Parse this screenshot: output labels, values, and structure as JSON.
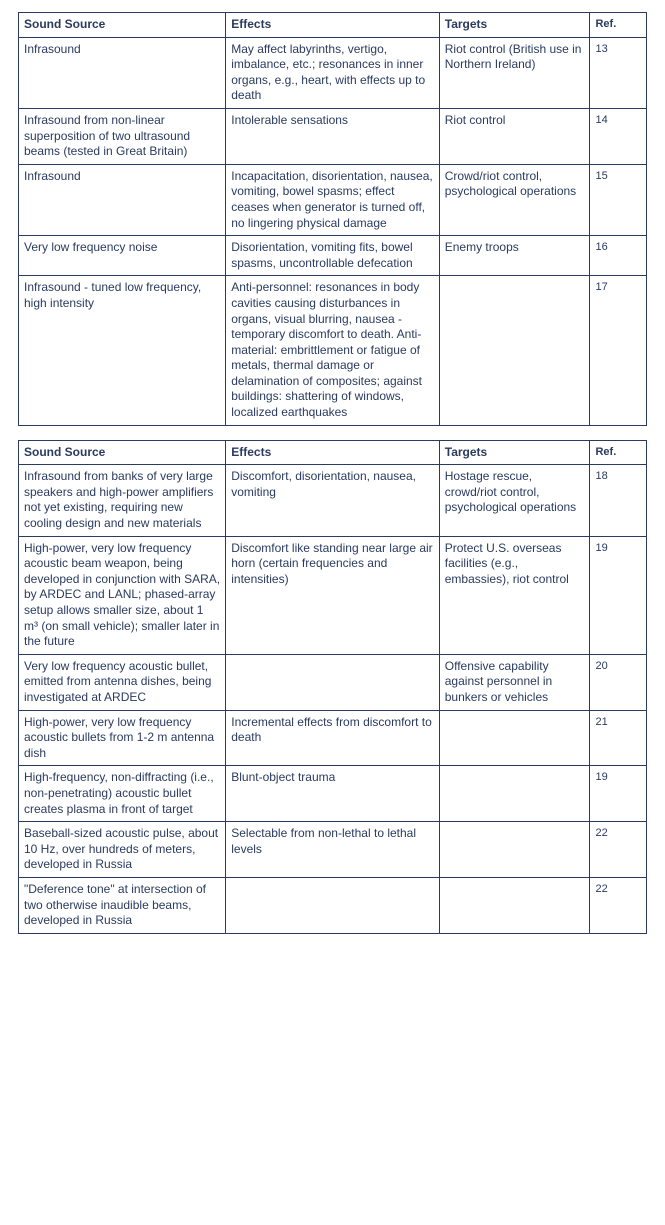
{
  "headers": {
    "source": "Sound Source",
    "effects": "Effects",
    "targets": "Targets",
    "ref": "Ref."
  },
  "table1": [
    {
      "source": "Infrasound",
      "effects": "May affect labyrinths, vertigo, imbalance, etc.; resonances in inner organs, e.g., heart, with effects up to death",
      "targets": "Riot control (British use in Northern Ireland)",
      "ref": "13"
    },
    {
      "source": "Infrasound from non-linear superposition of two ultrasound beams (tested in Great Britain)",
      "effects": "Intolerable sensations",
      "targets": "Riot control",
      "ref": "14"
    },
    {
      "source": "Infrasound",
      "effects": "Incapacitation, disorientation, nausea, vomiting, bowel spasms; effect ceases when generator is turned off, no lingering physical damage",
      "targets": "Crowd/riot control, psychological operations",
      "ref": "15"
    },
    {
      "source": "Very low frequency noise",
      "effects": "Disorientation, vomiting fits, bowel spasms, uncontrollable defecation",
      "targets": "Enemy troops",
      "ref": "16"
    },
    {
      "source": "Infrasound - tuned low frequency, high intensity",
      "effects": "Anti-personnel: resonances in body cavities causing disturbances in organs, visual blurring, nausea - temporary discomfort to death. Anti-material: embrittlement or fatigue of metals, thermal damage or delamination of composites; against buildings: shattering of windows, localized earthquakes",
      "targets": "",
      "ref": "17"
    }
  ],
  "table2": [
    {
      "source": "Infrasound from banks of very large speakers and high-power amplifiers not yet existing, requiring new cooling design and new materials",
      "effects": "Discomfort, disorientation, nausea, vomiting",
      "targets": "Hostage rescue, crowd/riot control, psychological operations",
      "ref": "18"
    },
    {
      "source": "High-power, very low frequency acoustic beam weapon, being developed in conjunction with SARA, by ARDEC and LANL; phased-array setup allows smaller size, about 1 m³ (on small vehicle); smaller later in the future",
      "effects": "Discomfort like standing near large air horn (certain frequencies and intensities)",
      "targets": "Protect U.S. overseas facilities (e.g., embassies), riot control",
      "ref": "19"
    },
    {
      "source": "Very low frequency acoustic bullet, emitted from antenna dishes, being investigated at ARDEC",
      "effects": "",
      "targets": "Offensive capability against personnel in bunkers or vehicles",
      "ref": "20"
    },
    {
      "source": "High-power, very low frequency acoustic bullets from 1-2 m antenna dish",
      "effects": "Incremental effects from discomfort to death",
      "targets": "",
      "ref": "21"
    },
    {
      "source": "High-frequency, non-diffracting (i.e., non-penetrating) acoustic bullet creates plasma in front of target",
      "effects": "Blunt-object trauma",
      "targets": "",
      "ref": "19"
    },
    {
      "source": "Baseball-sized acoustic pulse, about 10 Hz, over hundreds of meters, developed in Russia",
      "effects": "Selectable from non-lethal to lethal levels",
      "targets": "",
      "ref": "22"
    },
    {
      "source": "\"Deference tone\" at intersection of two otherwise inaudible beams, developed in Russia",
      "effects": "",
      "targets": "",
      "ref": "22"
    }
  ]
}
